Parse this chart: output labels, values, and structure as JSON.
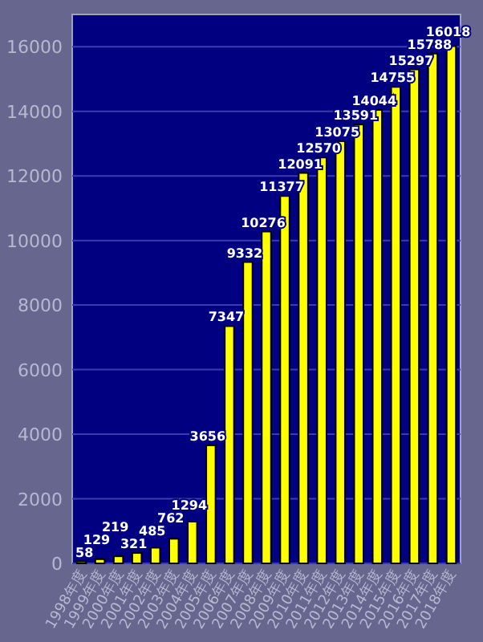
{
  "chart_data": {
    "type": "bar",
    "categories": [
      "1998年度",
      "1999年度",
      "2000年度",
      "2001年度",
      "2002年度",
      "2003年度",
      "2004年度",
      "2005年度",
      "2006年度",
      "2007年度",
      "2008年度",
      "2009年度",
      "2010年度",
      "2011年度",
      "2012年度",
      "2013年度",
      "2014年度",
      "2015年度",
      "2016年度",
      "2017年度",
      "2018年度"
    ],
    "values": [
      58,
      129,
      219,
      321,
      485,
      762,
      1294,
      3656,
      7347,
      9332,
      10276,
      11377,
      12091,
      12570,
      13075,
      13591,
      14044,
      14755,
      15297,
      15788,
      16018
    ],
    "color": "#ffff00",
    "ylim": [
      0,
      17000
    ],
    "yticks": [
      0,
      2000,
      4000,
      6000,
      8000,
      10000,
      12000,
      14000,
      16000
    ],
    "grid": "y",
    "data_labels": true
  }
}
